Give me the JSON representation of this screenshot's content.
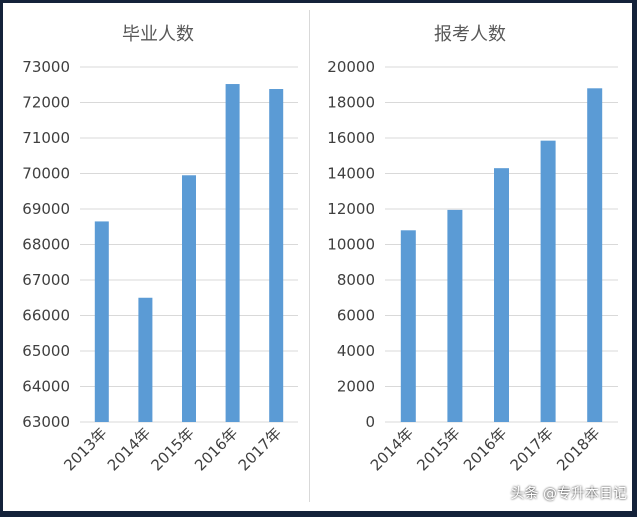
{
  "chart_data": [
    {
      "type": "bar",
      "title": "毕业人数",
      "categories": [
        "2013年",
        "2014年",
        "2015年",
        "2016年",
        "2017年"
      ],
      "values": [
        68650,
        66500,
        69950,
        72520,
        72380
      ],
      "ylim": [
        63000,
        73000
      ],
      "yticks": [
        "63000",
        "64000",
        "65000",
        "66000",
        "67000",
        "68000",
        "69000",
        "70000",
        "71000",
        "72000",
        "73000"
      ],
      "grid": true,
      "color": "#5b9bd5"
    },
    {
      "type": "bar",
      "title": "报考人数",
      "categories": [
        "2014年",
        "2015年",
        "2016年",
        "2017年",
        "2018年"
      ],
      "values": [
        10800,
        11950,
        14300,
        15850,
        18800
      ],
      "ylim": [
        0,
        20000
      ],
      "yticks": [
        "0",
        "2000",
        "4000",
        "6000",
        "8000",
        "10000",
        "12000",
        "14000",
        "16000",
        "18000",
        "20000"
      ],
      "grid": true,
      "color": "#5b9bd5"
    }
  ],
  "watermark": {
    "text": "头条 @专升本日记",
    "icon": "toutiao-logo-icon"
  }
}
